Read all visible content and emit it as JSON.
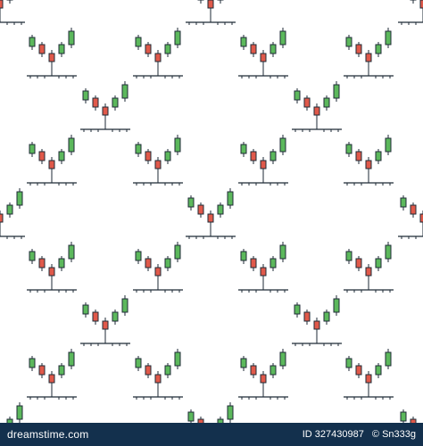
{
  "footer": {
    "logo": "dreamstime.com",
    "id": "ID 327430987",
    "credit": "© Sn333g"
  }
}
